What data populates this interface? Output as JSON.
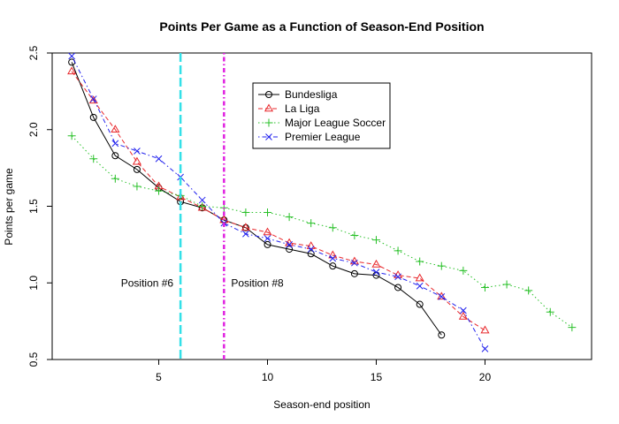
{
  "chart_data": {
    "type": "line",
    "title": "Points Per Game as a Function of Season-End Position",
    "xlabel": "Season-end position",
    "ylabel": "Points per game",
    "xlim": [
      0.1,
      24.9
    ],
    "ylim": [
      0.5,
      2.5
    ],
    "xticks": [
      5,
      10,
      15,
      20
    ],
    "yticks": [
      0.5,
      1.0,
      1.5,
      2.0,
      2.5
    ],
    "legend_position": "top-center",
    "series": [
      {
        "name": "Bundesliga",
        "color": "#000000",
        "marker": "circle",
        "line": "solid",
        "x": [
          1,
          2,
          3,
          4,
          5,
          6,
          7,
          8,
          9,
          10,
          11,
          12,
          13,
          14,
          15,
          16,
          17,
          18
        ],
        "values": [
          2.44,
          2.08,
          1.83,
          1.74,
          1.62,
          1.53,
          1.49,
          1.41,
          1.36,
          1.25,
          1.22,
          1.19,
          1.11,
          1.06,
          1.05,
          0.97,
          0.86,
          0.66
        ]
      },
      {
        "name": "La Liga",
        "color": "#e8272b",
        "marker": "triangle",
        "line": "dashed",
        "x": [
          1,
          2,
          3,
          4,
          5,
          6,
          7,
          8,
          9,
          10,
          11,
          12,
          13,
          14,
          15,
          16,
          17,
          18,
          19,
          20
        ],
        "values": [
          2.38,
          2.19,
          2.0,
          1.79,
          1.63,
          1.56,
          1.49,
          1.41,
          1.36,
          1.33,
          1.26,
          1.24,
          1.18,
          1.14,
          1.12,
          1.05,
          1.03,
          0.91,
          0.78,
          0.69
        ]
      },
      {
        "name": "Major League Soccer",
        "color": "#28c028",
        "marker": "plus",
        "line": "dotted",
        "x": [
          1,
          2,
          3,
          4,
          5,
          6,
          7,
          8,
          9,
          10,
          11,
          12,
          13,
          14,
          15,
          16,
          17,
          18,
          19,
          20,
          21,
          22,
          23,
          24
        ],
        "values": [
          1.96,
          1.81,
          1.68,
          1.63,
          1.6,
          1.57,
          1.5,
          1.49,
          1.46,
          1.46,
          1.43,
          1.39,
          1.36,
          1.31,
          1.28,
          1.21,
          1.14,
          1.11,
          1.08,
          0.97,
          0.99,
          0.95,
          0.81,
          0.71
        ]
      },
      {
        "name": "Premier League",
        "color": "#2222ee",
        "marker": "cross",
        "line": "dotdash",
        "x": [
          1,
          2,
          3,
          4,
          5,
          6,
          7,
          8,
          9,
          10,
          11,
          12,
          13,
          14,
          15,
          16,
          17,
          18,
          19,
          20
        ],
        "values": [
          2.48,
          2.2,
          1.91,
          1.86,
          1.81,
          1.69,
          1.54,
          1.39,
          1.32,
          1.29,
          1.25,
          1.22,
          1.16,
          1.13,
          1.07,
          1.04,
          0.98,
          0.91,
          0.82,
          0.57
        ]
      }
    ],
    "vlines": [
      {
        "x": 6,
        "color": "#33e0e8",
        "style": "longdash",
        "label": "Position #6"
      },
      {
        "x": 8,
        "color": "#e020e0",
        "style": "dotdash",
        "label": "Position #8"
      }
    ]
  }
}
